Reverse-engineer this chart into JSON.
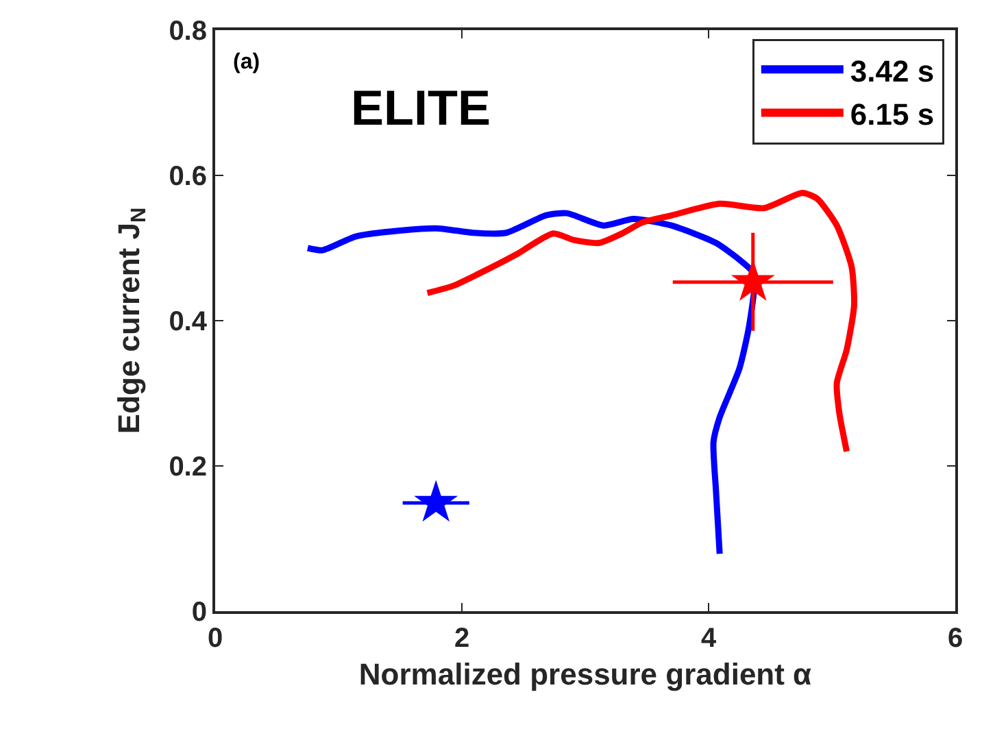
{
  "chart_data": {
    "type": "line",
    "xlabel": "Normalized pressure gradient α",
    "ylabel": "Edge current J$_{N}$",
    "annotations": [
      "(a)",
      "ELITE"
    ],
    "xlim": [
      0,
      6
    ],
    "xticks": [
      0,
      2,
      4,
      6
    ],
    "ylim": [
      0,
      0.8
    ],
    "yticks": [
      0,
      0.2,
      0.4,
      0.6,
      0.8
    ],
    "legend": "top right",
    "line_style": "solid",
    "series": [
      {
        "name": "3.42 s",
        "color": "#0000ff",
        "x": [
          0.75,
          0.87,
          1.14,
          1.5,
          1.81,
          2.09,
          2.36,
          2.68,
          2.85,
          3.15,
          3.39,
          3.7,
          4.06,
          4.25,
          4.37,
          4.33,
          4.25,
          4.09,
          4.04,
          4.06,
          4.09
        ],
        "values": [
          0.5,
          0.497,
          0.516,
          0.524,
          0.527,
          0.521,
          0.521,
          0.545,
          0.548,
          0.531,
          0.54,
          0.531,
          0.507,
          0.484,
          0.464,
          0.394,
          0.334,
          0.267,
          0.233,
          0.166,
          0.079
        ]
      },
      {
        "name": "6.15 s",
        "color": "#ff0000",
        "x": [
          1.72,
          1.93,
          2.13,
          2.44,
          2.74,
          2.91,
          3.11,
          3.31,
          3.46,
          3.7,
          4.09,
          4.45,
          4.76,
          4.88,
          5.04,
          5.16,
          5.18,
          5.12,
          5.04,
          5.06,
          5.12
        ],
        "values": [
          0.438,
          0.448,
          0.464,
          0.491,
          0.52,
          0.511,
          0.507,
          0.521,
          0.535,
          0.545,
          0.561,
          0.555,
          0.576,
          0.568,
          0.531,
          0.474,
          0.421,
          0.36,
          0.314,
          0.273,
          0.22
        ]
      },
      {
        "type": "scatter",
        "color": "#0000ff",
        "marker": "star",
        "x": [
          1.79
        ],
        "values": [
          0.149
        ],
        "xerrors": [
          [
            1.52,
            2.06
          ]
        ]
      },
      {
        "type": "scatter",
        "color": "#ff0000",
        "marker": "star",
        "x": [
          4.36
        ],
        "values": [
          0.453
        ],
        "xerrors": [
          [
            3.71,
            5.01
          ]
        ],
        "errors": [
          [
            0.386,
            0.521
          ]
        ]
      }
    ]
  }
}
